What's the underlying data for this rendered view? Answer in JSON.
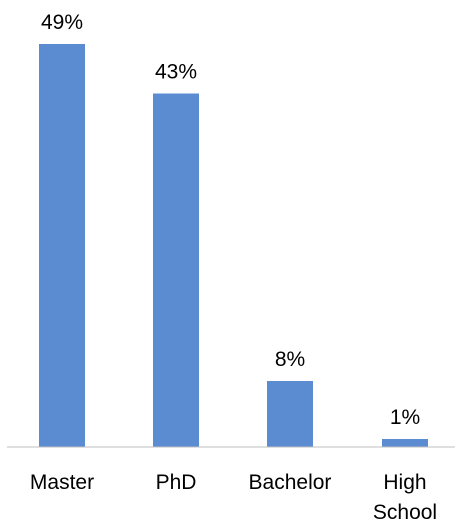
{
  "chart_data": {
    "type": "bar",
    "categories": [
      [
        "Master"
      ],
      [
        "PhD"
      ],
      [
        "Bachelor"
      ],
      [
        "High",
        "School"
      ]
    ],
    "values": [
      49,
      43,
      8,
      1
    ],
    "data_labels": [
      "49%",
      "43%",
      "8%",
      "1%"
    ],
    "title": "",
    "xlabel": "",
    "ylabel": "",
    "ylim": [
      0,
      49
    ],
    "grid": false,
    "colors": {
      "bar": "#5b8bd0",
      "axis": "#bfbfbf",
      "text": "#000000"
    }
  }
}
